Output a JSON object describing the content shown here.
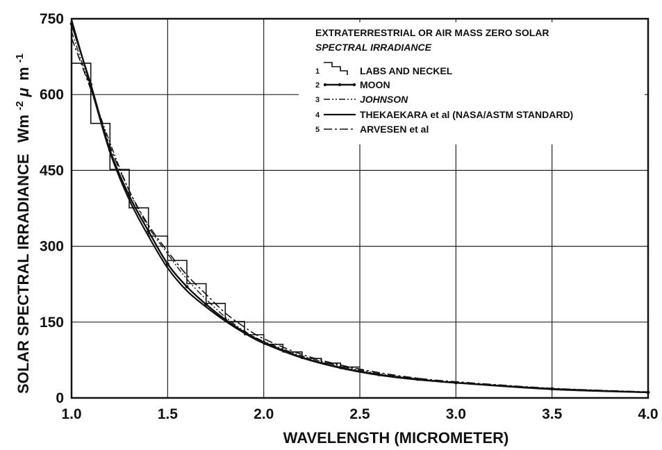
{
  "chart_data": {
    "type": "line",
    "title": "",
    "legend_title_lines": [
      "EXTRATERRESTRIAL OR AIR MASS ZERO SOLAR",
      "SPECTRAL IRRADIANCE"
    ],
    "xlabel": "WAVELENGTH (MICROMETER)",
    "ylabel_main": "SOLAR SPECTRAL IRRADIANCE",
    "ylabel_units": {
      "base": "Wm",
      "exp1": "-2",
      "mu": "μ",
      "m": "m",
      "exp2": "-1"
    },
    "xlim": [
      1.0,
      4.0
    ],
    "ylim": [
      0,
      750
    ],
    "xticks": [
      1.0,
      1.5,
      2.0,
      2.5,
      3.0,
      3.5,
      4.0
    ],
    "xtick_labels": [
      "1.0",
      "1.5",
      "2.0",
      "2.5",
      "3.0",
      "3.5",
      "4.0"
    ],
    "yticks": [
      0,
      150,
      300,
      450,
      600,
      750
    ],
    "ytick_labels": [
      "0",
      "150",
      "300",
      "450",
      "600",
      "750"
    ],
    "grid": true,
    "legend_position": "top-right",
    "series": [
      {
        "number": "1",
        "name": "LABS AND NECKEL",
        "style": "step",
        "x": [
          1.0,
          1.1,
          1.2,
          1.3,
          1.4,
          1.5,
          1.6,
          1.7,
          1.8,
          1.9,
          2.0,
          2.1,
          2.2,
          2.3,
          2.4
        ],
        "y": [
          662,
          543,
          452,
          376,
          320,
          272,
          226,
          187,
          151,
          125,
          106,
          91,
          78,
          69,
          61
        ]
      },
      {
        "number": "2",
        "name": "MOON",
        "style": "solid-dots",
        "x": [
          1.0,
          1.1,
          1.2,
          1.3,
          1.4,
          1.5,
          1.6,
          1.7,
          1.8,
          1.9,
          2.0,
          2.2,
          2.4,
          2.6,
          2.8,
          3.0,
          3.5,
          4.0
        ],
        "y": [
          740,
          620,
          490,
          400,
          330,
          265,
          220,
          185,
          155,
          130,
          110,
          80,
          60,
          46,
          37,
          30,
          18,
          11
        ]
      },
      {
        "number": "3",
        "name": "JOHNSON",
        "style": "dash-dot-dot",
        "x": [
          1.0,
          1.1,
          1.2,
          1.3,
          1.4,
          1.5,
          1.6,
          1.7,
          1.8,
          1.9,
          2.0,
          2.2,
          2.4,
          2.6,
          2.8,
          3.0,
          3.5,
          4.0
        ],
        "y": [
          725,
          612,
          505,
          410,
          338,
          285,
          235,
          195,
          160,
          132,
          112,
          83,
          63,
          48,
          38,
          31,
          18,
          11
        ]
      },
      {
        "number": "4",
        "name": "THEKAEKARA et al (NASA/ASTM STANDARD)",
        "style": "solid",
        "x": [
          1.0,
          1.1,
          1.2,
          1.3,
          1.4,
          1.5,
          1.6,
          1.7,
          1.8,
          1.9,
          2.0,
          2.2,
          2.4,
          2.6,
          2.8,
          3.0,
          3.5,
          4.0
        ],
        "y": [
          748,
          616,
          486,
          392,
          320,
          257,
          212,
          180,
          152,
          128,
          108,
          79,
          59,
          45,
          36,
          30,
          17,
          11
        ]
      },
      {
        "number": "5",
        "name": "ARVESEN et al",
        "style": "dash-dot",
        "x": [
          1.0,
          1.1,
          1.2,
          1.3,
          1.4,
          1.5,
          1.6,
          1.7,
          1.8,
          1.9,
          2.0,
          2.2,
          2.4,
          2.6,
          2.8,
          3.0,
          3.5,
          4.0
        ],
        "y": [
          712,
          610,
          498,
          410,
          342,
          290,
          243,
          205,
          168,
          140,
          117,
          86,
          65,
          50,
          39,
          32,
          19,
          12
        ]
      }
    ]
  }
}
